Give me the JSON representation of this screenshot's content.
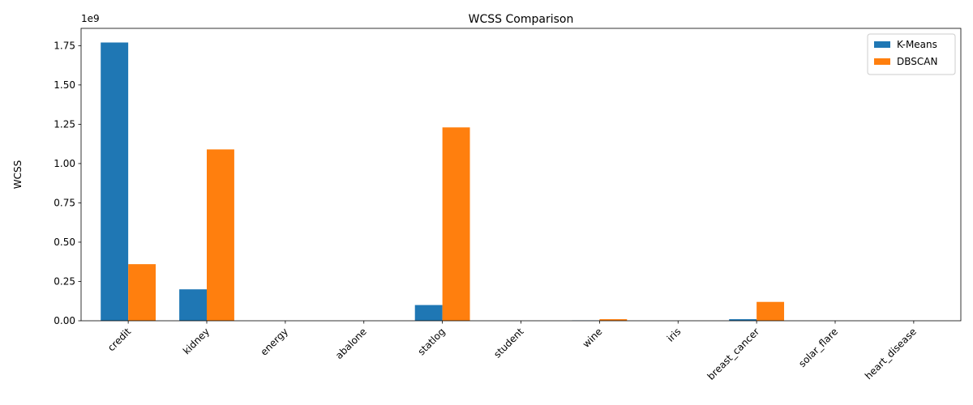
{
  "chart_data": {
    "type": "bar",
    "title": "WCSS Comparison",
    "xlabel": "",
    "ylabel": "WCSS",
    "offset_text": "1e9",
    "scale": 1000000000,
    "ylim": [
      0,
      1.86
    ],
    "yticks": [
      0.0,
      0.25,
      0.5,
      0.75,
      1.0,
      1.25,
      1.5,
      1.75
    ],
    "ytick_labels": [
      "0.00",
      "0.25",
      "0.50",
      "0.75",
      "1.00",
      "1.25",
      "1.50",
      "1.75"
    ],
    "categories": [
      "credit",
      "kidney",
      "energy",
      "abalone",
      "statlog",
      "student",
      "wine",
      "iris",
      "breast_cancer",
      "solar_flare",
      "heart_disease"
    ],
    "series": [
      {
        "name": "K-Means",
        "color": "#1f77b4",
        "values": [
          1.77,
          0.2,
          0.0,
          0.0,
          0.1,
          0.0,
          0.002,
          0.0,
          0.01,
          0.0,
          0.0
        ]
      },
      {
        "name": "DBSCAN",
        "color": "#ff7f0e",
        "values": [
          0.36,
          1.09,
          0.0,
          0.0,
          1.23,
          0.0,
          0.01,
          0.0,
          0.12,
          0.0,
          0.0
        ]
      }
    ],
    "legend_position": "upper right",
    "grid": false
  }
}
